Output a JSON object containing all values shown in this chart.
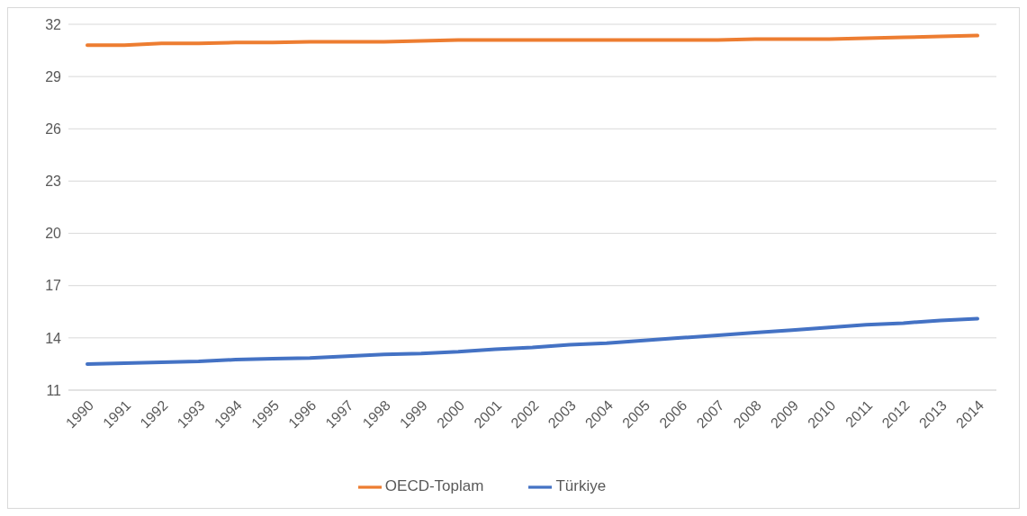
{
  "chart_data": {
    "type": "line",
    "categories": [
      "1990",
      "1991",
      "1992",
      "1993",
      "1994",
      "1995",
      "1996",
      "1997",
      "1998",
      "1999",
      "2000",
      "2001",
      "2002",
      "2003",
      "2004",
      "2005",
      "2006",
      "2007",
      "2008",
      "2009",
      "2010",
      "2011",
      "2012",
      "2013",
      "2014"
    ],
    "series": [
      {
        "name": "Türkiye",
        "color": "#4472c4",
        "values": [
          12.5,
          12.55,
          12.6,
          12.65,
          12.75,
          12.8,
          12.85,
          12.95,
          13.05,
          13.1,
          13.2,
          13.35,
          13.45,
          13.6,
          13.7,
          13.85,
          14.0,
          14.15,
          14.3,
          14.45,
          14.6,
          14.75,
          14.85,
          15.0,
          15.1
        ]
      },
      {
        "name": "OECD-Toplam",
        "color": "#ed7d31",
        "values": [
          30.8,
          30.8,
          30.9,
          30.9,
          30.95,
          30.95,
          31.0,
          31.0,
          31.0,
          31.05,
          31.1,
          31.1,
          31.1,
          31.1,
          31.1,
          31.1,
          31.1,
          31.1,
          31.15,
          31.15,
          31.15,
          31.2,
          31.25,
          31.3,
          31.35
        ]
      }
    ],
    "ylim": [
      11,
      32
    ],
    "yticks": [
      11,
      14,
      17,
      20,
      23,
      26,
      29,
      32
    ],
    "grid": "y",
    "legend": "bottom",
    "marker": "none",
    "line_style": "solid"
  }
}
